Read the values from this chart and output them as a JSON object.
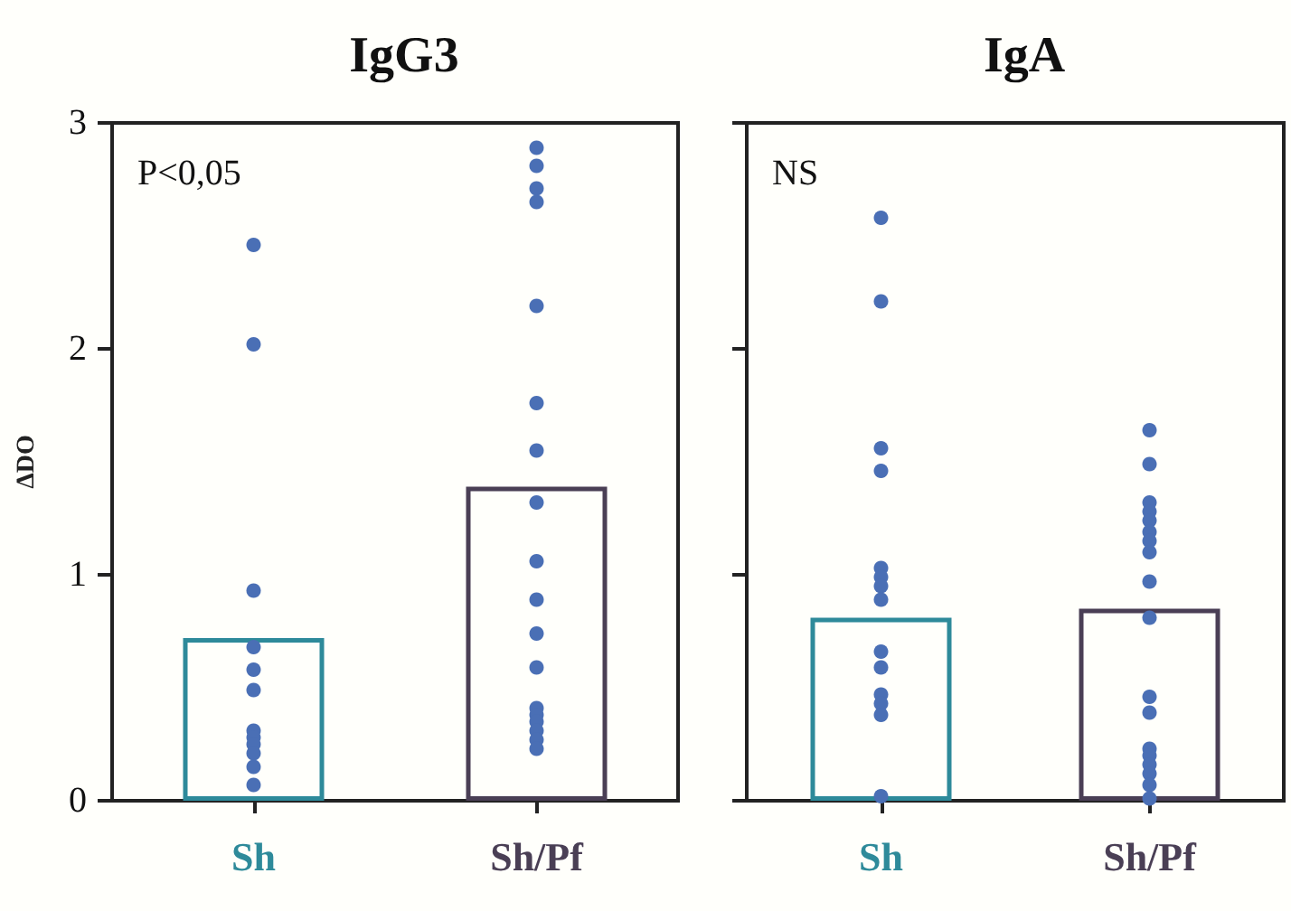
{
  "chart_data": [
    {
      "type": "bar",
      "title": "IgG3",
      "ylabel": "ΔDO",
      "categories": [
        "Sh",
        "Sh/Pf"
      ],
      "ylim": [
        0,
        3
      ],
      "yticks": [
        0,
        1,
        2,
        3
      ],
      "marker": "circle",
      "annotations": [
        "P<0,05"
      ],
      "series": [
        {
          "colors": [
            "#2e8a9a",
            "#4a3f55"
          ],
          "values": [
            0.72,
            1.39
          ]
        },
        {
          "type": "scatter",
          "color": "#4a6fb5",
          "x": [
            "Sh",
            "Sh",
            "Sh",
            "Sh",
            "Sh",
            "Sh",
            "Sh",
            "Sh",
            "Sh",
            "Sh",
            "Sh",
            "Sh",
            "Sh/Pf",
            "Sh/Pf",
            "Sh/Pf",
            "Sh/Pf",
            "Sh/Pf",
            "Sh/Pf",
            "Sh/Pf",
            "Sh/Pf",
            "Sh/Pf",
            "Sh/Pf",
            "Sh/Pf",
            "Sh/Pf",
            "Sh/Pf",
            "Sh/Pf",
            "Sh/Pf",
            "Sh/Pf",
            "Sh/Pf",
            "Sh/Pf"
          ],
          "values": [
            2.46,
            2.02,
            0.93,
            0.68,
            0.58,
            0.49,
            0.31,
            0.28,
            0.25,
            0.21,
            0.15,
            0.07,
            2.89,
            2.81,
            2.71,
            2.65,
            2.19,
            1.76,
            1.55,
            1.32,
            1.06,
            0.89,
            0.74,
            0.59,
            0.41,
            0.38,
            0.35,
            0.31,
            0.27,
            0.23
          ]
        }
      ]
    },
    {
      "type": "bar",
      "title": "IgA",
      "categories": [
        "Sh",
        "Sh/Pf"
      ],
      "ylim": [
        0,
        3
      ],
      "yticks": [
        0,
        1,
        2,
        3
      ],
      "tick_labels": "x",
      "marker": "circle",
      "annotations": [
        "NS"
      ],
      "series": [
        {
          "colors": [
            "#2e8a9a",
            "#4a3f55"
          ],
          "values": [
            0.81,
            0.85
          ]
        },
        {
          "type": "scatter",
          "color": "#4a6fb5",
          "x": [
            "Sh",
            "Sh",
            "Sh",
            "Sh",
            "Sh",
            "Sh",
            "Sh",
            "Sh",
            "Sh",
            "Sh",
            "Sh",
            "Sh",
            "Sh",
            "Sh",
            "Sh/Pf",
            "Sh/Pf",
            "Sh/Pf",
            "Sh/Pf",
            "Sh/Pf",
            "Sh/Pf",
            "Sh/Pf",
            "Sh/Pf",
            "Sh/Pf",
            "Sh/Pf",
            "Sh/Pf",
            "Sh/Pf",
            "Sh/Pf",
            "Sh/Pf",
            "Sh/Pf",
            "Sh/Pf",
            "Sh/Pf",
            "Sh/Pf"
          ],
          "values": [
            2.58,
            2.21,
            1.56,
            1.46,
            1.03,
            0.99,
            0.95,
            0.89,
            0.66,
            0.59,
            0.47,
            0.43,
            0.38,
            0.02,
            1.64,
            1.49,
            1.32,
            1.28,
            1.24,
            1.19,
            1.15,
            1.1,
            0.97,
            0.81,
            0.46,
            0.39,
            0.23,
            0.2,
            0.16,
            0.12,
            0.07,
            0.01
          ]
        }
      ]
    }
  ]
}
